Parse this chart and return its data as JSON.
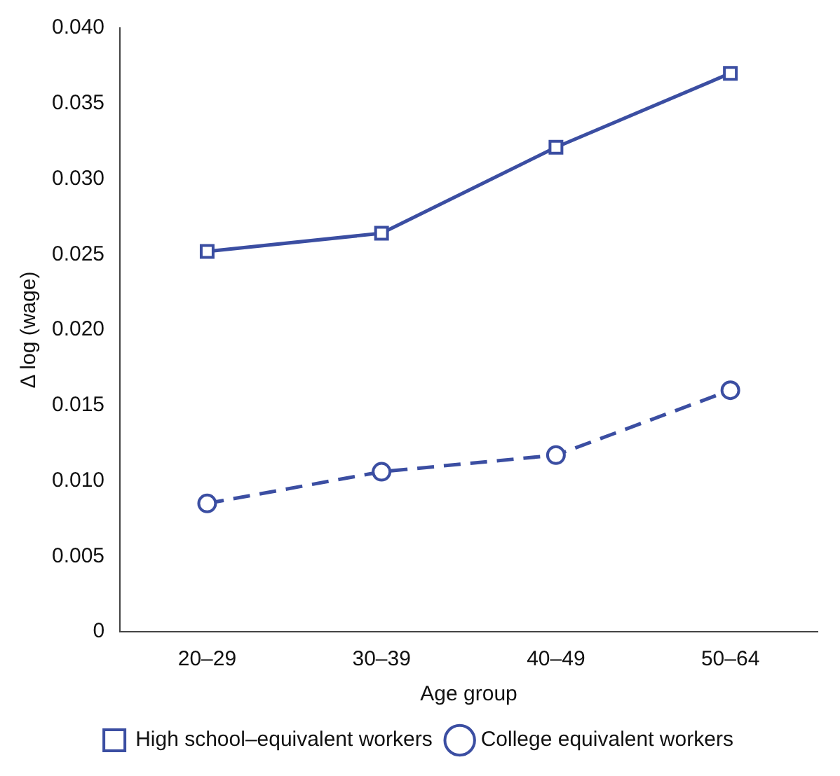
{
  "chart_data": {
    "type": "line",
    "xlabel": "Age group",
    "ylabel": "Δ log (wage)",
    "categories": [
      "20–29",
      "30–39",
      "40–49",
      "50–64"
    ],
    "series": [
      {
        "name": "High school–equivalent workers",
        "color": "#3b4ea2",
        "marker": "square",
        "line_style": "solid",
        "values": [
          0.0252,
          0.0264,
          0.0321,
          0.037
        ]
      },
      {
        "name": "College equivalent workers",
        "color": "#3b4ea2",
        "marker": "circle",
        "line_style": "dashed",
        "values": [
          0.0085,
          0.0106,
          0.0117,
          0.016
        ]
      }
    ],
    "ylim": [
      0,
      0.04
    ],
    "yticks": [
      0,
      {
        "value": 0.005,
        "label": "0.005"
      },
      {
        "value": 0.01,
        "label": "0.010"
      },
      {
        "value": 0.015,
        "label": "0.015"
      },
      {
        "value": 0.02,
        "label": "0.020"
      },
      {
        "value": 0.025,
        "label": "0.025"
      },
      {
        "value": 0.03,
        "label": "0.030"
      },
      {
        "value": 0.035,
        "label": "0.035"
      },
      {
        "value": 0.04,
        "label": "0.040"
      }
    ],
    "grid": false,
    "legend": "bottom"
  }
}
